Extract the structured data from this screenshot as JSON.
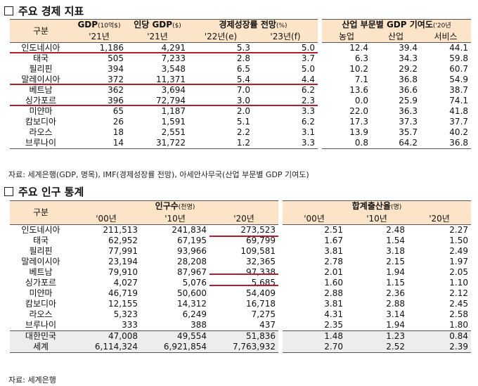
{
  "section1": {
    "title": "주요 경제 지표",
    "left_table": {
      "header_group": "구분",
      "col_gdp": "GDP",
      "col_gdp_unit": "(10억$)",
      "col_gdp_year": "'21년",
      "col_gdppc": "인당 GDP",
      "col_gdppc_unit": "($)",
      "col_gdppc_year": "'21년",
      "col_growth": "경제성장률 전망",
      "col_growth_unit": "(%)",
      "col_growth_y1": "'22년(e)",
      "col_growth_y2": "'23년(f)",
      "rows": [
        {
          "country": "인도네시아",
          "gdp": "1,186",
          "gdppc": "4,291",
          "g22": "5.3",
          "g23": "5.0"
        },
        {
          "country": "태국",
          "gdp": "505",
          "gdppc": "7,233",
          "g22": "2.8",
          "g23": "3.7"
        },
        {
          "country": "필리핀",
          "gdp": "394",
          "gdppc": "3,548",
          "g22": "6.5",
          "g23": "5.0"
        },
        {
          "country": "말레이시아",
          "gdp": "372",
          "gdppc": "11,371",
          "g22": "5.4",
          "g23": "4.4"
        },
        {
          "country": "베트남",
          "gdp": "362",
          "gdppc": "3,694",
          "g22": "7.0",
          "g23": "6.2"
        },
        {
          "country": "싱가포르",
          "gdp": "396",
          "gdppc": "72,794",
          "g22": "3.0",
          "g23": "2.3"
        },
        {
          "country": "미얀마",
          "gdp": "65",
          "gdppc": "1,187",
          "g22": "2.0",
          "g23": "3.3"
        },
        {
          "country": "캄보디아",
          "gdp": "26",
          "gdppc": "1,591",
          "g22": "5.1",
          "g23": "6.2"
        },
        {
          "country": "라오스",
          "gdp": "18",
          "gdppc": "2,551",
          "g22": "2.2",
          "g23": "3.1"
        },
        {
          "country": "브루나이",
          "gdp": "14",
          "gdppc": "31,722",
          "g22": "1.2",
          "g23": "3.3"
        }
      ]
    },
    "right_table": {
      "header": "산업 부문별 GDP 기여도",
      "header_year": "('20년",
      "col_agri": "농업",
      "col_ind": "산업",
      "col_serv": "서비스",
      "rows": [
        {
          "agri": "12.4",
          "ind": "39.4",
          "serv": "44.1"
        },
        {
          "agri": "6.3",
          "ind": "34.3",
          "serv": "59.8"
        },
        {
          "agri": "10.2",
          "ind": "29.2",
          "serv": "60.7"
        },
        {
          "agri": "7.1",
          "ind": "36.8",
          "serv": "54.9"
        },
        {
          "agri": "13.6",
          "ind": "36.6",
          "serv": "38.7"
        },
        {
          "agri": "0.0",
          "ind": "25.9",
          "serv": "74.1"
        },
        {
          "agri": "22.0",
          "ind": "36.3",
          "serv": "41.8"
        },
        {
          "agri": "17.3",
          "ind": "37.3",
          "serv": "37.7"
        },
        {
          "agri": "13.9",
          "ind": "35.7",
          "serv": "40.2"
        },
        {
          "agri": "0.8",
          "ind": "64.2",
          "serv": "36.8"
        }
      ]
    },
    "source": "자료: 세계은행(GDP, 명목), IMF(경제성장률 전망), 아세안사무국(산업 부문별 GDP 기여도)"
  },
  "section2": {
    "title": "주요 인구 통계",
    "left_table": {
      "header_group": "구분",
      "col_pop": "인구수",
      "col_pop_unit": "(천명)",
      "y00": "'00년",
      "y10": "'10년",
      "y20": "'20년",
      "rows": [
        {
          "country": "인도네시아",
          "p00": "211,513",
          "p10": "241,834",
          "p20": "273,523"
        },
        {
          "country": "태국",
          "p00": "62,952",
          "p10": "67,195",
          "p20": "69,799"
        },
        {
          "country": "필리핀",
          "p00": "77,991",
          "p10": "93,966",
          "p20": "109,581"
        },
        {
          "country": "말레이시아",
          "p00": "23,194",
          "p10": "28,208",
          "p20": "32,365"
        },
        {
          "country": "베트남",
          "p00": "79,910",
          "p10": "87,967",
          "p20": "97,338"
        },
        {
          "country": "싱가포르",
          "p00": "4,027",
          "p10": "5,076",
          "p20": "5,685"
        },
        {
          "country": "미얀마",
          "p00": "46,719",
          "p10": "50,600",
          "p20": "54,409"
        },
        {
          "country": "캄보디아",
          "p00": "12,155",
          "p10": "14,312",
          "p20": "16,718"
        },
        {
          "country": "라오스",
          "p00": "5,323",
          "p10": "6,249",
          "p20": "7,275"
        },
        {
          "country": "브루나이",
          "p00": "333",
          "p10": "388",
          "p20": "437"
        },
        {
          "country": "대한민국",
          "p00": "47,008",
          "p10": "49,554",
          "p20": "51,836"
        },
        {
          "country": "세계",
          "p00": "6,114,324",
          "p10": "6,921,854",
          "p20": "7,763,932"
        }
      ]
    },
    "right_table": {
      "header": "합계출산율",
      "header_unit": "(명)",
      "y00": "'00년",
      "y10": "'10년",
      "y20": "'20년",
      "rows": [
        {
          "f00": "2.51",
          "f10": "2.48",
          "f20": "2.27"
        },
        {
          "f00": "1.67",
          "f10": "1.54",
          "f20": "1.50"
        },
        {
          "f00": "3.81",
          "f10": "3.18",
          "f20": "2.49"
        },
        {
          "f00": "2.78",
          "f10": "2.15",
          "f20": "1.97"
        },
        {
          "f00": "2.01",
          "f10": "1.94",
          "f20": "2.05"
        },
        {
          "f00": "1.60",
          "f10": "1.15",
          "f20": "1.10"
        },
        {
          "f00": "2.88",
          "f10": "2.36",
          "f20": "2.12"
        },
        {
          "f00": "3.81",
          "f10": "2.88",
          "f20": "2.45"
        },
        {
          "f00": "4.31",
          "f10": "3.14",
          "f20": "2.58"
        },
        {
          "f00": "2.35",
          "f10": "1.94",
          "f20": "1.80"
        },
        {
          "f00": "1.48",
          "f10": "1.23",
          "f20": "0.84"
        },
        {
          "f00": "2.70",
          "f10": "2.52",
          "f20": "2.39"
        }
      ]
    },
    "source": "자료: 세계은행"
  },
  "colors": {
    "header_bg": "#fce4c8",
    "highlight": "#b11e2d",
    "gray_row": "#ededed"
  }
}
